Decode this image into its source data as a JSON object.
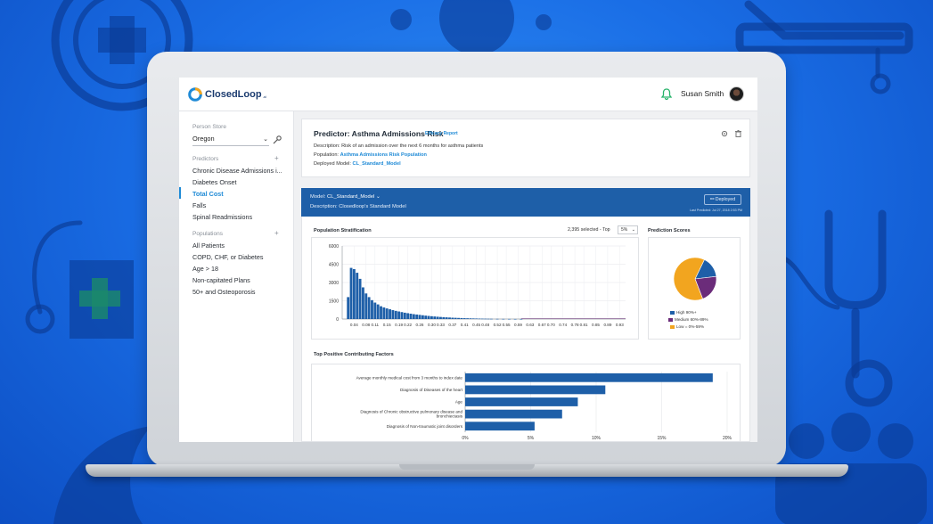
{
  "app": {
    "logo_text": "ClosedLoop",
    "logo_suffix": ".ai",
    "user_name": "Susan Smith"
  },
  "sidebar": {
    "person_store_label": "Person Store",
    "person_store_value": "Oregon",
    "predictors_label": "Predictors",
    "predictors_add": "+",
    "predictors": [
      {
        "label": "Chronic Disease Admissions i..."
      },
      {
        "label": "Diabetes Onset"
      },
      {
        "label": "Total Cost"
      },
      {
        "label": "Falls"
      },
      {
        "label": "Spinal Readmissions"
      }
    ],
    "active_predictor": "Total Cost",
    "populations_label": "Populations",
    "populations_add": "+",
    "populations": [
      {
        "label": "All Patients"
      },
      {
        "label": "COPD, CHF, or Diabetes"
      },
      {
        "label": "Age > 18"
      },
      {
        "label": "Non-capitated Plans"
      },
      {
        "label": "50+ and Osteoporosis"
      }
    ]
  },
  "predictor": {
    "title": "Predictor: Asthma Admissions Risk",
    "report_link": "Efficacy Report",
    "description_label": "Description:",
    "description": "Risk of an admission over the next 6 months for asthma patients",
    "population_label": "Population:",
    "population": "Asthma Admissions Risk Population",
    "deployed_model_label": "Deployed Model:",
    "deployed_model": "CL_Standard_Model"
  },
  "model_banner": {
    "model_label": "Model:",
    "model_value": "CL_Standard_Model",
    "description": "Description: Closedloop's Standard Model",
    "deployed_label": "Deployed",
    "last_predicted": "Last Predicted: Jul 27, 2018 2:53 PM"
  },
  "stratification": {
    "title": "Population Stratification",
    "selected_text": "2,395 selected - Top",
    "top_percent": "5%"
  },
  "prediction_scores": {
    "title": "Prediction Scores"
  },
  "factors": {
    "title": "Top Positive Contributing Factors"
  },
  "colors": {
    "bar_blue": "#1e5fa8",
    "high": "#1e5fa8",
    "medium": "#6b2c7a",
    "low": "#f2a51f",
    "accent": "#1f8ad6"
  },
  "chart_data": [
    {
      "type": "bar",
      "name": "population-stratification",
      "title": "Population Stratification",
      "xlabel": "",
      "ylabel": "",
      "ylim": [
        0,
        6000
      ],
      "yticks": [
        0,
        1500,
        3000,
        4500,
        6000
      ],
      "xlim": [
        0,
        0.95
      ],
      "xticks": [
        "0.04",
        "0.08",
        "0.11",
        "0.15",
        "0.19",
        "0.22",
        "0.26",
        "0.30",
        "0.33",
        "0.37",
        "0.41",
        "0.45",
        "0.48",
        "0.52",
        "0.55",
        "0.59",
        "0.63",
        "0.67",
        "0.70",
        "0.74",
        "0.78",
        "0.81",
        "0.85",
        "0.89",
        "0.93"
      ],
      "bin_width": 0.01,
      "x": [
        0.02,
        0.03,
        0.04,
        0.05,
        0.06,
        0.07,
        0.08,
        0.09,
        0.1,
        0.11,
        0.12,
        0.13,
        0.14,
        0.15,
        0.16,
        0.17,
        0.18,
        0.19,
        0.2,
        0.21,
        0.22,
        0.23,
        0.24,
        0.25,
        0.26,
        0.27,
        0.28,
        0.29,
        0.3,
        0.31,
        0.32,
        0.33,
        0.34,
        0.35,
        0.36,
        0.37,
        0.38,
        0.39,
        0.4,
        0.41,
        0.42,
        0.43,
        0.44,
        0.45,
        0.46,
        0.47,
        0.48,
        0.49,
        0.5,
        0.52,
        0.54,
        0.56,
        0.58,
        0.6
      ],
      "values": [
        1800,
        4200,
        4100,
        3800,
        3300,
        2600,
        2100,
        1800,
        1550,
        1350,
        1200,
        1050,
        950,
        870,
        800,
        730,
        670,
        620,
        570,
        520,
        480,
        440,
        400,
        370,
        340,
        310,
        280,
        255,
        230,
        210,
        190,
        170,
        155,
        140,
        125,
        110,
        100,
        90,
        80,
        70,
        62,
        55,
        48,
        42,
        36,
        30,
        26,
        22,
        18,
        14,
        10,
        8,
        5,
        3
      ],
      "grid": true
    },
    {
      "type": "pie",
      "name": "prediction-scores",
      "title": "Prediction Scores",
      "categories": [
        "High 90%+",
        "Medium 60%-89%",
        "Low = 0%-59%"
      ],
      "values": [
        16,
        21,
        63
      ],
      "colors": [
        "#1e5fa8",
        "#6b2c7a",
        "#f2a51f"
      ],
      "legend": "bottom"
    },
    {
      "type": "bar",
      "orientation": "horizontal",
      "name": "top-positive-contributing-factors",
      "title": "Top Positive Contributing Factors",
      "categories": [
        "Average monthly medical cost from 3 months to index date",
        "Diagnosis of Diseases of the heart",
        "Age",
        "Diagnosis of Chronic obstructive pulmonary disease and bronchiectasis",
        "Diagnosis of Non-traumatic joint disorders"
      ],
      "values": [
        18.9,
        10.7,
        8.6,
        7.4,
        5.3
      ],
      "xlim": [
        0,
        20
      ],
      "xticks": [
        "0%",
        "5%",
        "10%",
        "15%",
        "20%"
      ],
      "grid": true
    }
  ]
}
